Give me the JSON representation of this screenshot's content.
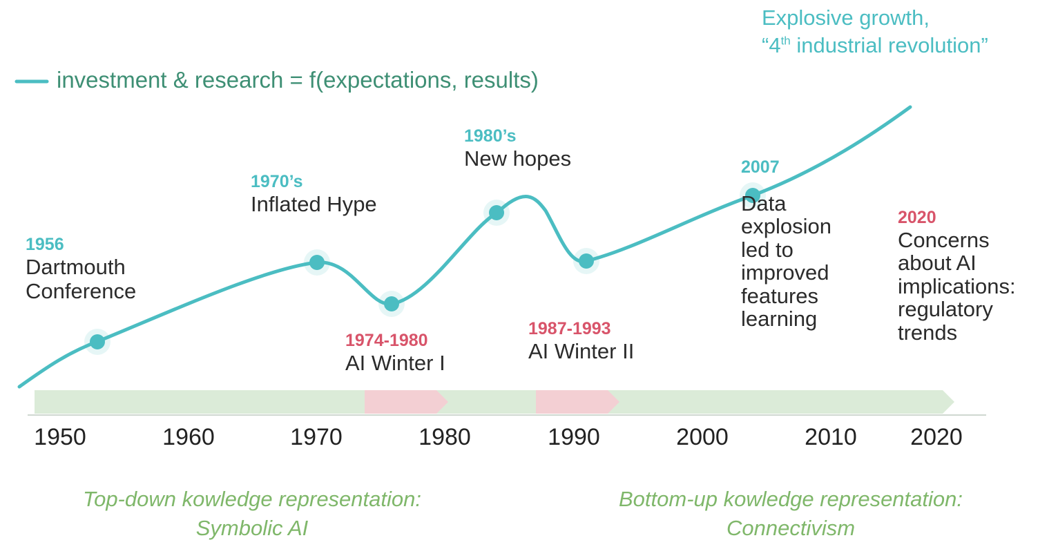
{
  "legend": {
    "text": "investment & research = f(expectations, results)",
    "color": "#4bbdc2"
  },
  "header": {
    "line1": "Explosive growth,",
    "line2_prefix": "“4",
    "line2_sup": "th",
    "line2_suffix": " industrial revolution”"
  },
  "events": [
    {
      "year": "1956",
      "title_lines": [
        "Dartmouth",
        "Conference"
      ]
    },
    {
      "year": "1970’s",
      "title_lines": [
        "Inflated Hype"
      ]
    },
    {
      "year": "1974-1980",
      "title_lines": [
        "AI Winter I"
      ]
    },
    {
      "year": "1980’s",
      "title_lines": [
        "New hopes"
      ]
    },
    {
      "year": "1987-1993",
      "title_lines": [
        "AI Winter II"
      ]
    },
    {
      "year": "2007",
      "title_lines": [
        "Data",
        "explosion",
        "led to",
        "improved",
        "features",
        "learning"
      ]
    },
    {
      "year": "2020",
      "title_lines": [
        "Concerns",
        "about AI",
        "implications:",
        "regulatory",
        "trends"
      ]
    }
  ],
  "axis": {
    "ticks": [
      "1950",
      "1960",
      "1970",
      "1980",
      "1990",
      "2000",
      "2010",
      "2020"
    ]
  },
  "bands": {
    "normal_color": "#dbebd8",
    "winter_color": "#f3cfd3",
    "winters": [
      {
        "from": 1974,
        "to": 1980
      },
      {
        "from": 1987,
        "to": 1993
      }
    ]
  },
  "paradigms": {
    "top_down": {
      "line1": "Top-down kowledge representation:",
      "line2": "Symbolic AI"
    },
    "bottom_up": {
      "line1": "Bottom-up kowledge representation:",
      "line2": "Connectivism"
    }
  },
  "colors": {
    "teal": "#4bbdc2",
    "red": "#d8546a",
    "green_text": "#7fb76a",
    "legend_text": "#3e8f74"
  }
}
